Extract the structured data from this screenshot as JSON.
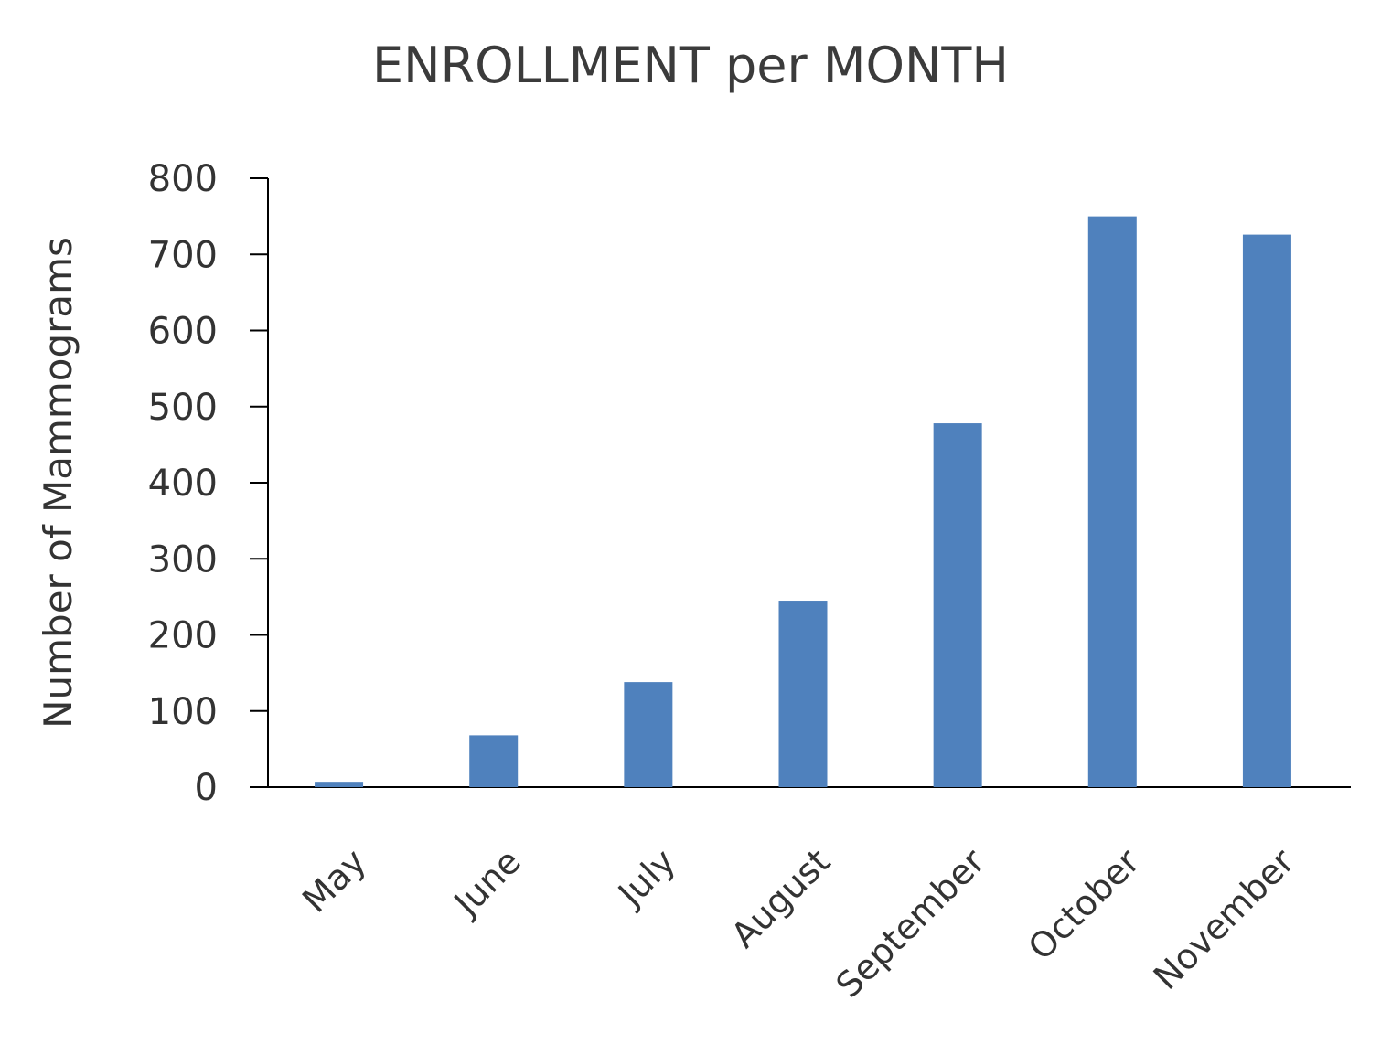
{
  "chart_data": {
    "type": "bar",
    "title": "ENROLLMENT per MONTH",
    "xlabel": "",
    "ylabel": "Number of Mammograms",
    "categories": [
      "May",
      "June",
      "July",
      "August",
      "September",
      "October",
      "November"
    ],
    "values": [
      7,
      68,
      138,
      245,
      478,
      750,
      726
    ],
    "ylim": [
      0,
      800
    ],
    "yticks": [
      "0",
      "100",
      "200",
      "300",
      "400",
      "500",
      "600",
      "700",
      "800"
    ],
    "bar_color": "#4f81bd",
    "grid": false,
    "legend": "none"
  }
}
